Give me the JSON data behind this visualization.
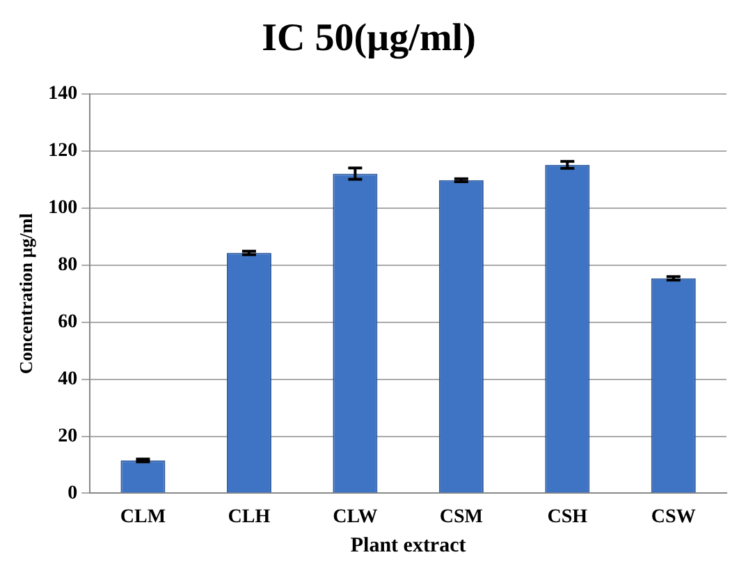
{
  "chart_data": {
    "type": "bar",
    "title": "IC 50(µg/ml)",
    "xlabel": "Plant extract",
    "ylabel": "Concentration µg/ml",
    "categories": [
      "CLM",
      "CLH",
      "CLW",
      "CSM",
      "CSH",
      "CSW"
    ],
    "values": [
      11.5,
      84.3,
      112.1,
      109.8,
      115.2,
      75.4
    ],
    "errors": [
      0.5,
      0.6,
      2,
      0.5,
      1.2,
      0.6
    ],
    "color": "#3f74c4",
    "ylim": [
      0,
      140
    ],
    "yticks": [
      0,
      20,
      40,
      60,
      80,
      100,
      120,
      140
    ],
    "grid": "y"
  }
}
